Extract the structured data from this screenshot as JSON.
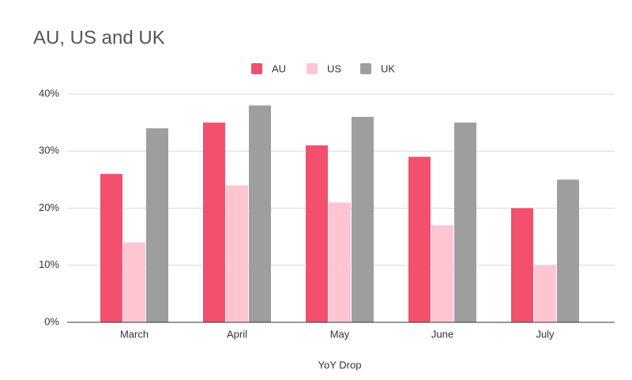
{
  "chart_data": {
    "type": "bar",
    "title": "AU, US and UK",
    "x_label": "YoY Drop",
    "categories": [
      "March",
      "April",
      "May",
      "June",
      "July"
    ],
    "series": [
      {
        "name": "AU",
        "color": "#f2506d",
        "values": [
          26,
          35,
          31,
          29,
          20
        ]
      },
      {
        "name": "US",
        "color": "#ffc5d1",
        "values": [
          14,
          24,
          21,
          17,
          10
        ]
      },
      {
        "name": "UK",
        "color": "#9e9e9e",
        "values": [
          34,
          38,
          36,
          35,
          25
        ]
      }
    ],
    "ylim": [
      0,
      40
    ],
    "yticks": [
      {
        "value": 0,
        "label": "0%"
      },
      {
        "value": 10,
        "label": "10%"
      },
      {
        "value": 20,
        "label": "20%"
      },
      {
        "value": 30,
        "label": "30%"
      },
      {
        "value": 40,
        "label": "40%"
      }
    ],
    "grid": true,
    "legend": "top"
  }
}
